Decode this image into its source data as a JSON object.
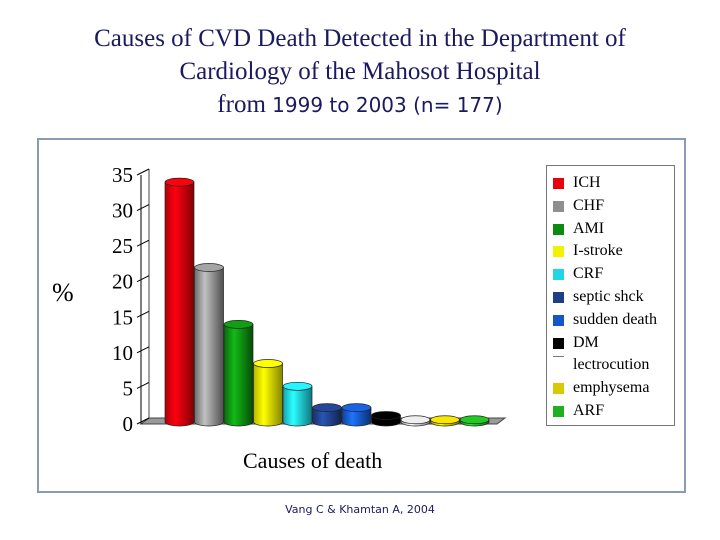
{
  "title_lines": [
    "Causes of CVD Death Detected in the Department of",
    "Cardiology of the Mahosot Hospital",
    "from",
    "1999 to  2003 (n= 177)"
  ],
  "credit": "Vang C & Khamtan A, 2004",
  "chart_data": {
    "type": "bar",
    "title": "Causes of CVD Death Detected in the Department of Cardiology of the Mahosot Hospital from 1999 to 2003 (n= 177)",
    "xlabel": "Causes of death",
    "ylabel": "%",
    "ylim": [
      0,
      35
    ],
    "yticks": [
      "0",
      "5",
      "10",
      "15",
      "20",
      "25",
      "30",
      "35"
    ],
    "categories": [
      "ICH",
      "CHF",
      "AMI",
      "I-stroke",
      "CRF",
      "septic shck",
      "sudden death",
      "DM",
      "lectrocution",
      "emphysema",
      "ARF"
    ],
    "values": [
      34,
      22,
      14,
      8.5,
      5.3,
      2.3,
      2.3,
      1.2,
      0.6,
      0.6,
      0.6
    ],
    "colors": [
      "#e8000b",
      "#8f8f8f",
      "#0d8a10",
      "#f2f200",
      "#1fd5e6",
      "#1e3f86",
      "#1656c9",
      "#000000",
      "#d0d0d0",
      "#d9c900",
      "#1fb01f"
    ],
    "legend_position": "right",
    "grid": false
  }
}
